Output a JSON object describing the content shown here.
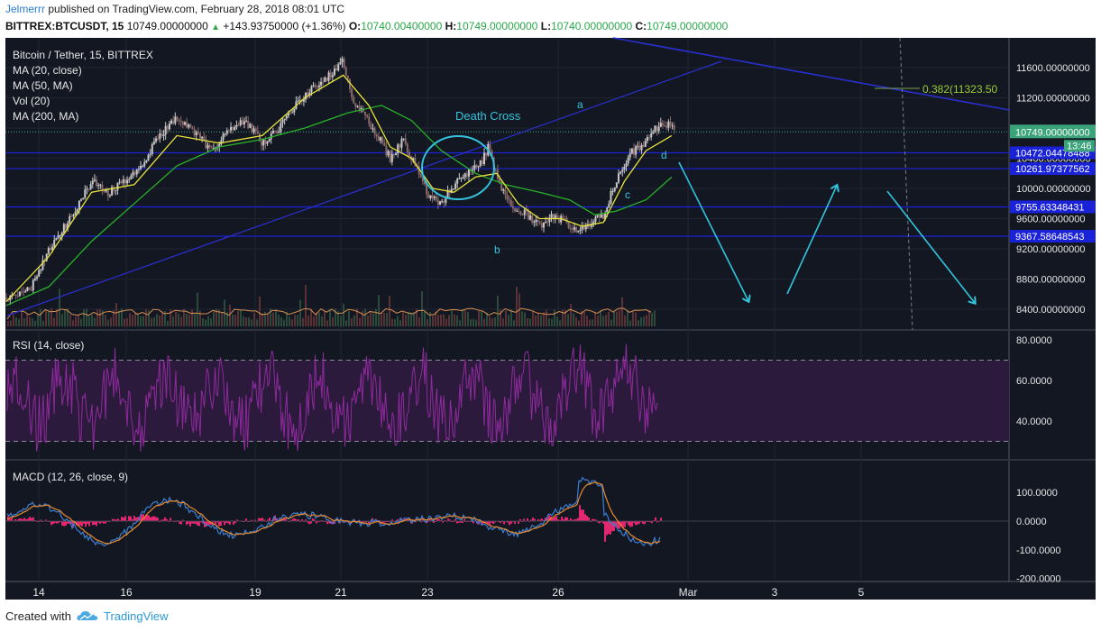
{
  "header": {
    "user": "Jelmerrr",
    "published": "published on TradingView.com, February 28, 2018 08:01 UTC",
    "symbol": "BITTREX:BTCUSDT, 15",
    "last": "10749.00000000",
    "change": "+143.93750000 (+1.36%)",
    "open_label": "O:",
    "open": "10740.00400000",
    "high_label": "H:",
    "high": "10749.00000000",
    "low_label": "L:",
    "low": "10740.00000000",
    "close_label": "C:",
    "close": "10749.00000000"
  },
  "legend": [
    "Bitcoin / Tether, 15, BITTREX",
    "MA (20, close)",
    "MA (50, MA)",
    "Vol (20)",
    "MA (200, MA)"
  ],
  "footer": {
    "created_with": "Created with",
    "brand": "TradingView"
  },
  "colors": {
    "bg": "#131722",
    "candle": "#b0b0b0",
    "ma_fast": "#e8e33a",
    "ma_slow": "#28b228",
    "level": "#1a22d8",
    "trend": "#2a2fd0",
    "annot": "#33c4dd",
    "rsi": "#8e2a9c",
    "rsi_band": "#2b1a3c",
    "macd": "#3a7fd4",
    "signal": "#e88a2a",
    "hist": "#e0276f"
  },
  "chart_data": [
    {
      "type": "candlestick",
      "title": "Bitcoin / Tether, 15, BITTREX",
      "x_ticks": [
        "14",
        "16",
        "19",
        "21",
        "23",
        "26",
        "Mar",
        "3",
        "5"
      ],
      "ylim": [
        8200,
        11900
      ],
      "y_ticks": [
        "11600.00000000",
        "11200.00000000",
        "10800.00000000",
        "10400.00000000",
        "10000.00000000",
        "9600.00000000",
        "9200.00000000",
        "8800.00000000",
        "8400.00000000"
      ],
      "series": [
        {
          "name": "Bitcoin / Tether",
          "points": [
            [
              0,
              8550
            ],
            [
              0.3,
              8600
            ],
            [
              0.6,
              8700
            ],
            [
              1.0,
              9200
            ],
            [
              1.5,
              9600
            ],
            [
              2.0,
              10100
            ],
            [
              2.4,
              9950
            ],
            [
              2.8,
              10100
            ],
            [
              3.2,
              10350
            ],
            [
              3.6,
              10700
            ],
            [
              4.0,
              10950
            ],
            [
              4.4,
              10750
            ],
            [
              4.8,
              10500
            ],
            [
              5.2,
              10750
            ],
            [
              5.6,
              10900
            ],
            [
              6.0,
              10600
            ],
            [
              6.4,
              10800
            ],
            [
              6.8,
              11100
            ],
            [
              7.2,
              11350
            ],
            [
              7.6,
              11500
            ],
            [
              7.9,
              11700
            ],
            [
              8.1,
              11200
            ],
            [
              8.4,
              10950
            ],
            [
              8.7,
              10700
            ],
            [
              9.0,
              10400
            ],
            [
              9.3,
              10650
            ],
            [
              9.6,
              10300
            ],
            [
              9.9,
              9900
            ],
            [
              10.2,
              9800
            ],
            [
              10.5,
              10050
            ],
            [
              10.8,
              10200
            ],
            [
              11.1,
              10300
            ],
            [
              11.3,
              10550
            ],
            [
              11.6,
              10000
            ],
            [
              11.9,
              9750
            ],
            [
              12.2,
              9650
            ],
            [
              12.5,
              9500
            ],
            [
              12.8,
              9650
            ],
            [
              13.1,
              9550
            ],
            [
              13.4,
              9400
            ],
            [
              13.7,
              9550
            ],
            [
              14.0,
              9650
            ],
            [
              14.3,
              10100
            ],
            [
              14.6,
              10450
            ],
            [
              14.9,
              10550
            ],
            [
              15.1,
              10750
            ],
            [
              15.3,
              10800
            ],
            [
              15.5,
              10860
            ],
            [
              15.7,
              10749
            ]
          ]
        },
        {
          "name": "MA (20, close)",
          "points": [
            [
              0,
              8500
            ],
            [
              1,
              9100
            ],
            [
              2,
              9950
            ],
            [
              3,
              10050
            ],
            [
              4,
              10700
            ],
            [
              5,
              10600
            ],
            [
              6,
              10700
            ],
            [
              7,
              11200
            ],
            [
              7.9,
              11500
            ],
            [
              8.5,
              11100
            ],
            [
              9,
              10550
            ],
            [
              9.5,
              10400
            ],
            [
              10,
              10000
            ],
            [
              10.5,
              9950
            ],
            [
              11,
              10150
            ],
            [
              11.5,
              10200
            ],
            [
              12,
              9800
            ],
            [
              12.5,
              9600
            ],
            [
              13,
              9600
            ],
            [
              13.5,
              9500
            ],
            [
              14,
              9550
            ],
            [
              14.5,
              10100
            ],
            [
              15,
              10500
            ],
            [
              15.6,
              10700
            ]
          ]
        },
        {
          "name": "MA (50, MA)",
          "points": [
            [
              0,
              8450
            ],
            [
              1,
              8700
            ],
            [
              2,
              9300
            ],
            [
              3,
              9800
            ],
            [
              4,
              10300
            ],
            [
              5,
              10550
            ],
            [
              6,
              10650
            ],
            [
              7,
              10800
            ],
            [
              8,
              11000
            ],
            [
              8.8,
              11100
            ],
            [
              9.5,
              10900
            ],
            [
              10.2,
              10500
            ],
            [
              11,
              10200
            ],
            [
              11.7,
              10050
            ],
            [
              12.5,
              9950
            ],
            [
              13.2,
              9850
            ],
            [
              13.8,
              9650
            ],
            [
              14.3,
              9700
            ],
            [
              15,
              9850
            ],
            [
              15.6,
              10150
            ]
          ]
        }
      ],
      "levels": [
        "10472.04478488",
        "10261.97377562",
        "9755.63348431",
        "9367.58648543"
      ],
      "last_price_label": "10749.00000000",
      "countdown": "13:46",
      "fib_label": "0.382(11323.50",
      "annotations": [
        "Death Cross",
        "a",
        "b",
        "c",
        "d"
      ]
    },
    {
      "type": "line",
      "title": "RSI (14, close)",
      "ylim": [
        22,
        82
      ],
      "y_ticks": [
        "80.0000",
        "60.0000",
        "40.0000"
      ],
      "band": [
        30,
        70
      ]
    },
    {
      "type": "line",
      "title": "MACD (12, 26, close, 9)",
      "ylim": [
        -210,
        175
      ],
      "y_ticks": [
        "100.0000",
        "0.0000",
        "-100.0000",
        "-200.0000"
      ],
      "series": [
        {
          "name": "MACD"
        },
        {
          "name": "Signal"
        },
        {
          "name": "Histogram"
        }
      ]
    }
  ]
}
